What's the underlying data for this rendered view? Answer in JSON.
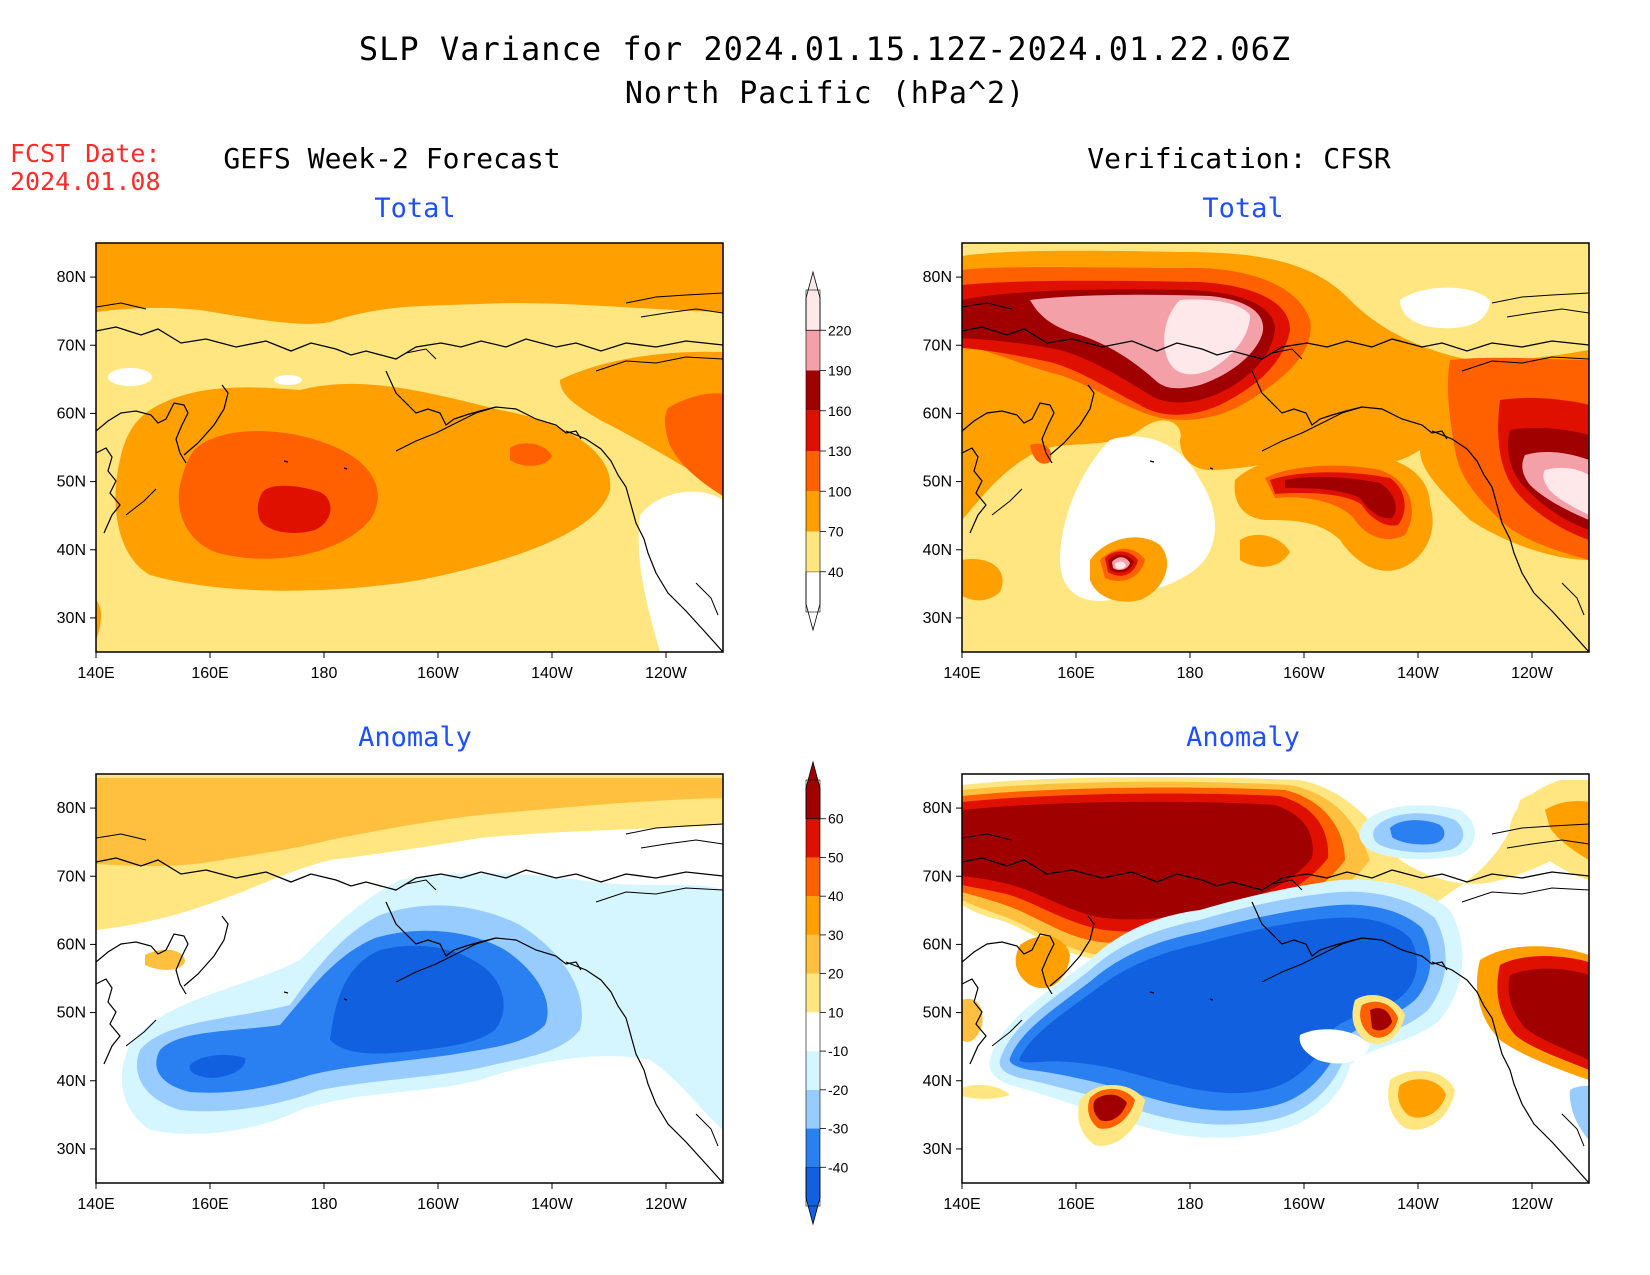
{
  "title": "SLP Variance for 2024.01.15.12Z-2024.01.22.06Z",
  "subtitle": "North Pacific (hPa^2)",
  "fcst_date": {
    "label": "FCST Date:",
    "value": "2024.01.08"
  },
  "columns": {
    "left": "GEFS Week-2 Forecast",
    "right": "Verification: CFSR"
  },
  "panels": [
    {
      "id": "fcst-total",
      "title": "Total"
    },
    {
      "id": "verif-total",
      "title": "Total"
    },
    {
      "id": "fcst-anomaly",
      "title": "Anomaly"
    },
    {
      "id": "verif-anomaly",
      "title": "Anomaly"
    }
  ],
  "axes": {
    "lon_ticks": [
      "140E",
      "160E",
      "180",
      "160W",
      "140W",
      "120W"
    ],
    "lat_ticks": [
      "80N",
      "70N",
      "60N",
      "50N",
      "40N",
      "30N"
    ],
    "lon_range_deg_east": [
      140,
      250
    ],
    "lat_range": [
      25,
      85
    ]
  },
  "colorbars": {
    "total": {
      "levels": [
        "40",
        "70",
        "100",
        "130",
        "160",
        "190",
        "220"
      ],
      "colors": [
        "#ffffff",
        "#ffe680",
        "#ffa000",
        "#ff6000",
        "#e01000",
        "#a00000",
        "#f4a0a8",
        "#ffe8ea"
      ]
    },
    "anomaly": {
      "levels": [
        "-40",
        "-30",
        "-20",
        "-10",
        "10",
        "20",
        "30",
        "40",
        "50",
        "60"
      ],
      "colors": [
        "#1060e0",
        "#2a80f0",
        "#98ccff",
        "#d6f6ff",
        "#ffffff",
        "#ffe680",
        "#ffc040",
        "#ffa000",
        "#ff6000",
        "#e01000",
        "#a00000"
      ]
    }
  }
}
